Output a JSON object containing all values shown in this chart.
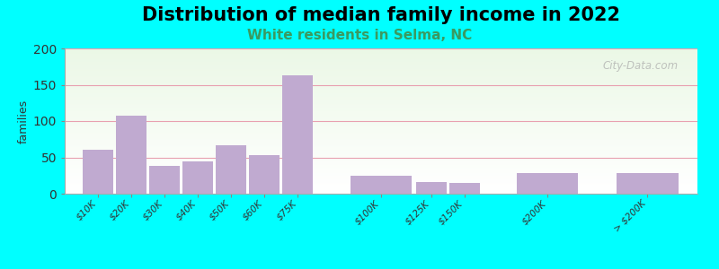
{
  "title": "Distribution of median family income in 2022",
  "subtitle": "White residents in Selma, NC",
  "categories": [
    "$10K",
    "$20K",
    "$30K",
    "$40K",
    "$50K",
    "$60K",
    "$75K",
    "$100K",
    "$125K",
    "$150K",
    "$200K",
    "> $200K"
  ],
  "values": [
    60,
    107,
    38,
    45,
    67,
    53,
    163,
    25,
    16,
    15,
    28,
    28
  ],
  "bar_color": "#c0aad0",
  "ylabel": "families",
  "ylim": [
    0,
    200
  ],
  "yticks": [
    0,
    50,
    100,
    150,
    200
  ],
  "background_color": "#00ffff",
  "title_fontsize": 15,
  "subtitle_fontsize": 11,
  "subtitle_color": "#3a9a60",
  "watermark": "City-Data.com",
  "bar_widths": [
    1,
    1,
    1,
    1,
    1,
    1,
    1,
    2,
    1,
    1,
    2,
    2
  ],
  "bar_lefts": [
    0,
    1,
    2,
    3,
    4,
    5,
    6,
    8,
    10,
    11,
    13,
    16
  ]
}
